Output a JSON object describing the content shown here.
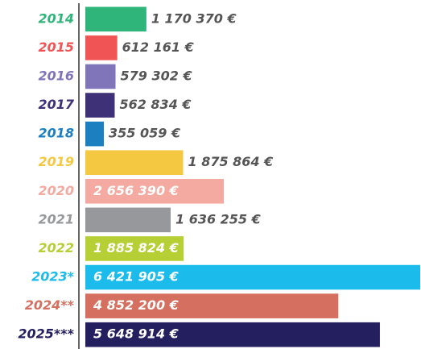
{
  "chart_data": {
    "type": "hbar",
    "categories": [
      "2014",
      "2015",
      "2016",
      "2017",
      "2018",
      "2019",
      "2020",
      "2021",
      "2022",
      "2023*",
      "2024**",
      "2025***"
    ],
    "values": [
      1170370,
      612161,
      579302,
      562834,
      355059,
      1875864,
      2656390,
      1636255,
      1885824,
      6421905,
      4852200,
      5648914
    ],
    "value_labels": [
      "1 170 370 €",
      "612 161 €",
      "579 302 €",
      "562 834 €",
      "355 059 €",
      "1 875 864 €",
      "2 656 390 €",
      "1 636 255 €",
      "1 885 824 €",
      "6 421 905 €",
      "4 852 200 €",
      "5 648 914 €"
    ],
    "colors": [
      "#2fb57a",
      "#f05454",
      "#8075b8",
      "#3f3178",
      "#1c7fc0",
      "#f5c842",
      "#f4aaa0",
      "#97989b",
      "#b5cf34",
      "#1bbcec",
      "#d56f5f",
      "#241f5e"
    ],
    "xlim": [
      0,
      6421905
    ]
  }
}
